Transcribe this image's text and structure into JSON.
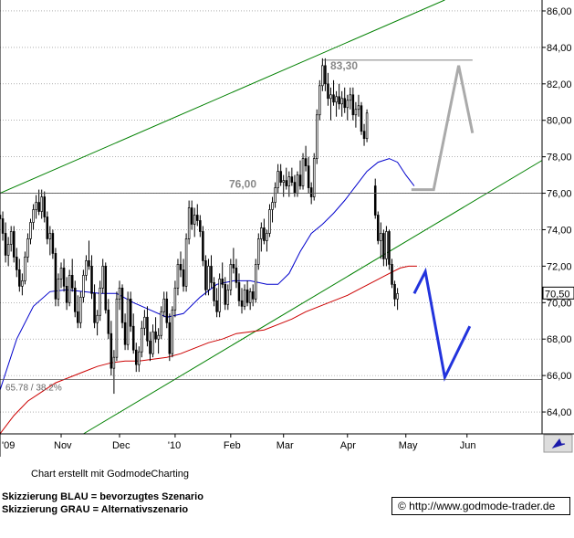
{
  "chart_data": {
    "type": "candlestick",
    "y_axis": {
      "min": 62.8,
      "max": 86.6,
      "ticks": [
        "86,00",
        "84,00",
        "82,00",
        "80,00",
        "78,00",
        "76,00",
        "74,00",
        "72,00",
        "70,00",
        "68,00",
        "66,00",
        "64,00"
      ],
      "tick_values": [
        86,
        84,
        82,
        80,
        78,
        76,
        74,
        72,
        70,
        68,
        66,
        64
      ],
      "position": "right"
    },
    "x_axis": {
      "labels": [
        "'09",
        "Nov",
        "Dec",
        "'10",
        "Feb",
        "Mar",
        "Apr",
        "May",
        "Jun"
      ],
      "day_positions": [
        0,
        22,
        43,
        63,
        83,
        102,
        125,
        146,
        168
      ],
      "range_days": [
        0,
        195
      ]
    },
    "current_price_label": "70,50",
    "current_price": 70.5,
    "horizontal_levels": [
      {
        "label": "83,30",
        "value": 83.3
      },
      {
        "label": "76,00",
        "value": 76.0
      },
      {
        "label": "65.78 / 38.2%",
        "value": 65.78
      }
    ],
    "trend_lines": [
      {
        "color": "#008000",
        "points": [
          [
            0,
            76.0
          ],
          [
            160,
            86.6
          ]
        ]
      },
      {
        "color": "#008000",
        "points": [
          [
            30,
            62.8
          ],
          [
            195,
            77.8
          ]
        ]
      }
    ],
    "moving_averages": [
      {
        "color": "#0000cc",
        "points": [
          [
            0,
            65.2
          ],
          [
            6,
            68
          ],
          [
            12,
            69.8
          ],
          [
            18,
            70.6
          ],
          [
            24,
            70.7
          ],
          [
            30,
            70.6
          ],
          [
            36,
            70.5
          ],
          [
            42,
            70.5
          ],
          [
            48,
            70.0
          ],
          [
            54,
            69.6
          ],
          [
            60,
            69.2
          ],
          [
            66,
            69.4
          ],
          [
            72,
            70.3
          ],
          [
            78,
            71.0
          ],
          [
            84,
            71.2
          ],
          [
            90,
            71.2
          ],
          [
            96,
            71.0
          ],
          [
            100,
            71.0
          ],
          [
            104,
            71.6
          ],
          [
            108,
            72.8
          ],
          [
            112,
            73.8
          ],
          [
            116,
            74.3
          ],
          [
            120,
            74.9
          ],
          [
            124,
            75.6
          ],
          [
            128,
            76.4
          ],
          [
            132,
            77.2
          ],
          [
            136,
            77.7
          ],
          [
            140,
            77.9
          ],
          [
            143,
            77.7
          ],
          [
            146,
            77.0
          ],
          [
            149,
            76.4
          ]
        ]
      },
      {
        "color": "#cc0000",
        "points": [
          [
            0,
            62.8
          ],
          [
            5,
            63.8
          ],
          [
            10,
            64.6
          ],
          [
            15,
            65.1
          ],
          [
            20,
            65.6
          ],
          [
            25,
            65.9
          ],
          [
            30,
            66.2
          ],
          [
            35,
            66.5
          ],
          [
            40,
            66.7
          ],
          [
            45,
            66.8
          ],
          [
            50,
            66.8
          ],
          [
            55,
            66.9
          ],
          [
            60,
            67.0
          ],
          [
            65,
            67.2
          ],
          [
            70,
            67.5
          ],
          [
            75,
            67.8
          ],
          [
            80,
            68.0
          ],
          [
            85,
            68.3
          ],
          [
            90,
            68.4
          ],
          [
            95,
            68.5
          ],
          [
            100,
            68.8
          ],
          [
            105,
            69.1
          ],
          [
            110,
            69.5
          ],
          [
            115,
            69.8
          ],
          [
            120,
            70.1
          ],
          [
            125,
            70.4
          ],
          [
            130,
            70.8
          ],
          [
            135,
            71.2
          ],
          [
            140,
            71.6
          ],
          [
            144,
            71.9
          ],
          [
            147,
            72.0
          ],
          [
            150,
            72.0
          ]
        ]
      }
    ],
    "scenarios": [
      {
        "color": "#2233dd",
        "points": [
          [
            149,
            70.5
          ],
          [
            153,
            71.7
          ],
          [
            160,
            65.9
          ],
          [
            169,
            68.7
          ]
        ]
      },
      {
        "color": "#aaaaaa",
        "points": [
          [
            148,
            76.2
          ],
          [
            156,
            76.2
          ],
          [
            165,
            83.0
          ],
          [
            170,
            79.3
          ]
        ]
      }
    ],
    "candles": [
      [
        0,
        74.8,
        75.4,
        74.2,
        74.6
      ],
      [
        1,
        74.6,
        75.0,
        73.4,
        73.8
      ],
      [
        2,
        73.8,
        74.4,
        72.2,
        72.6
      ],
      [
        3,
        72.6,
        73.6,
        72.0,
        73.2
      ],
      [
        4,
        73.2,
        74.2,
        72.8,
        73.9
      ],
      [
        5,
        73.9,
        74.2,
        72.2,
        72.5
      ],
      [
        6,
        72.5,
        73.0,
        71.4,
        71.8
      ],
      [
        7,
        71.8,
        72.4,
        70.6,
        70.9
      ],
      [
        8,
        70.9,
        71.6,
        70.4,
        71.2
      ],
      [
        9,
        71.2,
        72.8,
        71.0,
        72.5
      ],
      [
        10,
        72.5,
        73.8,
        72.2,
        73.5
      ],
      [
        11,
        73.5,
        74.6,
        73.2,
        74.4
      ],
      [
        12,
        74.4,
        75.4,
        74.0,
        75.1
      ],
      [
        13,
        75.1,
        75.9,
        74.6,
        75.5
      ],
      [
        14,
        75.5,
        76.2,
        74.8,
        75.0
      ],
      [
        15,
        75.0,
        76.2,
        74.6,
        75.8
      ],
      [
        16,
        75.8,
        76.1,
        74.4,
        74.7
      ],
      [
        17,
        74.7,
        75.0,
        73.2,
        73.5
      ],
      [
        18,
        73.5,
        74.2,
        72.6,
        73.8
      ],
      [
        19,
        73.8,
        74.0,
        72.4,
        72.7
      ],
      [
        20,
        72.7,
        73.0,
        69.8,
        70.2
      ],
      [
        21,
        70.2,
        71.6,
        69.8,
        71.3
      ],
      [
        22,
        71.3,
        72.2,
        70.8,
        71.9
      ],
      [
        23,
        71.9,
        72.4,
        70.6,
        70.9
      ],
      [
        24,
        70.9,
        71.4,
        69.6,
        70.0
      ],
      [
        25,
        70.0,
        71.8,
        69.8,
        71.5
      ],
      [
        26,
        71.5,
        72.4,
        70.6,
        70.8
      ],
      [
        27,
        70.8,
        71.2,
        69.2,
        69.5
      ],
      [
        28,
        69.5,
        70.4,
        68.6,
        68.9
      ],
      [
        29,
        68.9,
        70.6,
        68.6,
        70.3
      ],
      [
        30,
        70.3,
        71.8,
        70.0,
        71.5
      ],
      [
        31,
        71.5,
        72.6,
        71.2,
        72.3
      ],
      [
        32,
        72.3,
        73.4,
        71.8,
        72.0
      ],
      [
        33,
        72.0,
        72.6,
        70.2,
        70.5
      ],
      [
        34,
        70.5,
        71.0,
        68.6,
        68.9
      ],
      [
        35,
        68.9,
        69.6,
        68.2,
        69.3
      ],
      [
        36,
        69.3,
        71.2,
        69.0,
        70.8
      ],
      [
        37,
        70.8,
        72.4,
        70.5,
        72.0
      ],
      [
        38,
        72.0,
        72.2,
        69.4,
        69.6
      ],
      [
        39,
        69.6,
        70.2,
        68.0,
        68.3
      ],
      [
        40,
        68.3,
        69.0,
        66.0,
        66.4
      ],
      [
        41,
        66.4,
        67.4,
        65.0,
        67.0
      ],
      [
        42,
        67.0,
        70.6,
        66.8,
        70.2
      ],
      [
        43,
        70.2,
        71.2,
        69.6,
        70.8
      ],
      [
        44,
        70.8,
        71.0,
        68.6,
        68.9
      ],
      [
        45,
        68.9,
        69.4,
        67.4,
        67.7
      ],
      [
        46,
        67.7,
        70.6,
        67.4,
        70.2
      ],
      [
        47,
        70.2,
        70.6,
        68.4,
        68.7
      ],
      [
        48,
        68.7,
        69.4,
        67.2,
        67.4
      ],
      [
        49,
        67.4,
        67.8,
        66.2,
        66.6
      ],
      [
        50,
        66.6,
        67.6,
        66.2,
        67.3
      ],
      [
        51,
        67.3,
        69.0,
        67.0,
        68.6
      ],
      [
        52,
        68.6,
        69.6,
        68.2,
        69.2
      ],
      [
        53,
        69.2,
        69.8,
        67.6,
        67.9
      ],
      [
        54,
        67.9,
        68.4,
        66.8,
        67.2
      ],
      [
        55,
        67.2,
        68.8,
        67.0,
        68.4
      ],
      [
        56,
        68.4,
        69.2,
        67.8,
        68.0
      ],
      [
        57,
        68.0,
        68.6,
        67.2,
        68.2
      ],
      [
        58,
        68.2,
        69.8,
        68.0,
        69.5
      ],
      [
        59,
        69.5,
        70.6,
        69.2,
        70.2
      ],
      [
        60,
        70.2,
        70.6,
        68.6,
        68.9
      ],
      [
        61,
        68.9,
        69.4,
        66.8,
        67.2
      ],
      [
        62,
        67.2,
        69.8,
        67.0,
        69.6
      ],
      [
        63,
        69.6,
        71.2,
        69.2,
        70.8
      ],
      [
        64,
        70.8,
        72.4,
        70.4,
        72.1
      ],
      [
        65,
        72.1,
        72.8,
        71.4,
        71.8
      ],
      [
        66,
        71.8,
        72.4,
        70.6,
        70.9
      ],
      [
        67,
        70.9,
        73.8,
        70.6,
        73.5
      ],
      [
        68,
        73.5,
        75.6,
        73.2,
        75.2
      ],
      [
        69,
        75.2,
        75.6,
        74.0,
        74.3
      ],
      [
        70,
        74.3,
        75.2,
        73.6,
        74.8
      ],
      [
        71,
        74.8,
        75.4,
        74.2,
        74.5
      ],
      [
        72,
        74.5,
        74.8,
        73.6,
        73.9
      ],
      [
        73,
        73.9,
        74.2,
        72.0,
        72.3
      ],
      [
        74,
        72.3,
        72.6,
        70.4,
        70.7
      ],
      [
        75,
        70.7,
        72.4,
        70.4,
        72.0
      ],
      [
        76,
        72.0,
        72.6,
        70.8,
        71.1
      ],
      [
        77,
        71.1,
        71.4,
        69.8,
        70.1
      ],
      [
        78,
        70.1,
        70.8,
        69.2,
        69.5
      ],
      [
        79,
        69.5,
        71.6,
        69.2,
        71.3
      ],
      [
        80,
        71.3,
        72.2,
        70.8,
        71.0
      ],
      [
        81,
        71.0,
        71.4,
        69.6,
        69.9
      ],
      [
        82,
        69.9,
        71.0,
        69.6,
        70.7
      ],
      [
        83,
        70.7,
        72.4,
        70.4,
        72.1
      ],
      [
        84,
        72.1,
        73.0,
        71.6,
        71.9
      ],
      [
        85,
        71.9,
        72.4,
        70.8,
        71.1
      ],
      [
        86,
        71.1,
        71.6,
        69.8,
        70.1
      ],
      [
        87,
        70.1,
        70.8,
        69.4,
        69.8
      ],
      [
        88,
        69.8,
        71.0,
        69.6,
        70.7
      ],
      [
        89,
        70.7,
        71.2,
        69.8,
        70.0
      ],
      [
        90,
        70.0,
        70.8,
        69.6,
        70.6
      ],
      [
        91,
        70.6,
        71.0,
        69.8,
        70.2
      ],
      [
        92,
        70.2,
        72.4,
        70.0,
        72.1
      ],
      [
        93,
        72.1,
        73.8,
        71.8,
        73.5
      ],
      [
        94,
        73.5,
        74.4,
        72.8,
        74.1
      ],
      [
        95,
        74.1,
        74.6,
        73.2,
        73.4
      ],
      [
        96,
        73.4,
        74.0,
        72.8,
        73.8
      ],
      [
        97,
        73.8,
        75.4,
        73.6,
        75.1
      ],
      [
        98,
        75.1,
        75.8,
        74.4,
        75.5
      ],
      [
        99,
        75.5,
        76.6,
        75.2,
        76.3
      ],
      [
        100,
        76.3,
        77.6,
        76.0,
        77.2
      ],
      [
        101,
        77.2,
        77.6,
        76.4,
        76.6
      ],
      [
        102,
        76.6,
        77.0,
        75.8,
        76.7
      ],
      [
        103,
        76.7,
        77.4,
        76.2,
        76.4
      ],
      [
        104,
        76.4,
        77.2,
        75.8,
        76.9
      ],
      [
        105,
        76.9,
        77.4,
        76.4,
        76.6
      ],
      [
        106,
        76.6,
        77.0,
        75.8,
        76.0
      ],
      [
        107,
        76.0,
        77.2,
        75.8,
        77.0
      ],
      [
        108,
        77.0,
        77.8,
        76.2,
        76.4
      ],
      [
        109,
        76.4,
        78.2,
        76.2,
        77.9
      ],
      [
        110,
        77.9,
        78.6,
        77.2,
        77.5
      ],
      [
        111,
        77.5,
        78.0,
        76.0,
        76.3
      ],
      [
        112,
        76.3,
        76.6,
        75.4,
        75.8
      ],
      [
        113,
        75.8,
        78.2,
        75.6,
        77.9
      ],
      [
        114,
        77.9,
        80.6,
        77.6,
        80.3
      ],
      [
        115,
        80.3,
        82.2,
        80.0,
        81.9
      ],
      [
        116,
        81.9,
        83.4,
        81.6,
        83.0
      ],
      [
        117,
        83.0,
        83.4,
        81.6,
        82.0
      ],
      [
        118,
        82.0,
        82.6,
        80.8,
        81.2
      ],
      [
        119,
        81.2,
        81.8,
        80.0,
        81.4
      ],
      [
        120,
        81.4,
        82.2,
        80.8,
        81.0
      ],
      [
        121,
        81.0,
        81.6,
        80.2,
        81.3
      ],
      [
        122,
        81.3,
        82.0,
        80.6,
        80.9
      ],
      [
        123,
        80.9,
        81.6,
        80.2,
        81.2
      ],
      [
        124,
        81.2,
        81.8,
        80.4,
        80.7
      ],
      [
        125,
        80.7,
        81.4,
        80.0,
        81.1
      ],
      [
        126,
        81.1,
        81.8,
        80.6,
        81.4
      ],
      [
        127,
        81.4,
        81.8,
        80.0,
        80.3
      ],
      [
        128,
        80.3,
        81.0,
        79.6,
        80.6
      ],
      [
        129,
        80.6,
        81.4,
        80.2,
        80.8
      ],
      [
        130,
        80.8,
        81.0,
        79.2,
        79.4
      ],
      [
        131,
        79.4,
        79.8,
        78.6,
        79.0
      ],
      [
        132,
        79.0,
        80.6,
        78.8,
        80.4
      ],
      [
        135,
        76.4,
        76.8,
        74.6,
        74.8
      ],
      [
        136,
        74.8,
        75.0,
        73.2,
        73.4
      ],
      [
        137,
        73.4,
        74.4,
        72.4,
        73.8
      ],
      [
        138,
        73.8,
        74.0,
        72.0,
        72.4
      ],
      [
        139,
        72.4,
        74.2,
        72.0,
        73.9
      ],
      [
        140,
        73.9,
        74.0,
        71.8,
        72.1
      ],
      [
        141,
        72.1,
        72.4,
        70.8,
        71.0
      ],
      [
        142,
        71.0,
        71.2,
        69.8,
        70.2
      ],
      [
        143,
        70.2,
        70.8,
        69.6,
        70.5
      ]
    ]
  },
  "footer": {
    "credit": "Chart erstellt mit GodmodeCharting",
    "legend_blue": "Skizzierung BLAU = bevorzugtes Szenario",
    "legend_grey": "Skizzierung GRAU = Alternativszenario",
    "copyright": "© http://www.godmode-trader.de"
  },
  "colors": {
    "grid": "#808080",
    "candle": "#000000",
    "trend": "#008000",
    "ma_short": "#0000cc",
    "ma_long": "#cc0000",
    "scenario_blue": "#2233dd",
    "scenario_grey": "#aaaaaa"
  },
  "icons": [
    "cursor-arrow-icon"
  ]
}
